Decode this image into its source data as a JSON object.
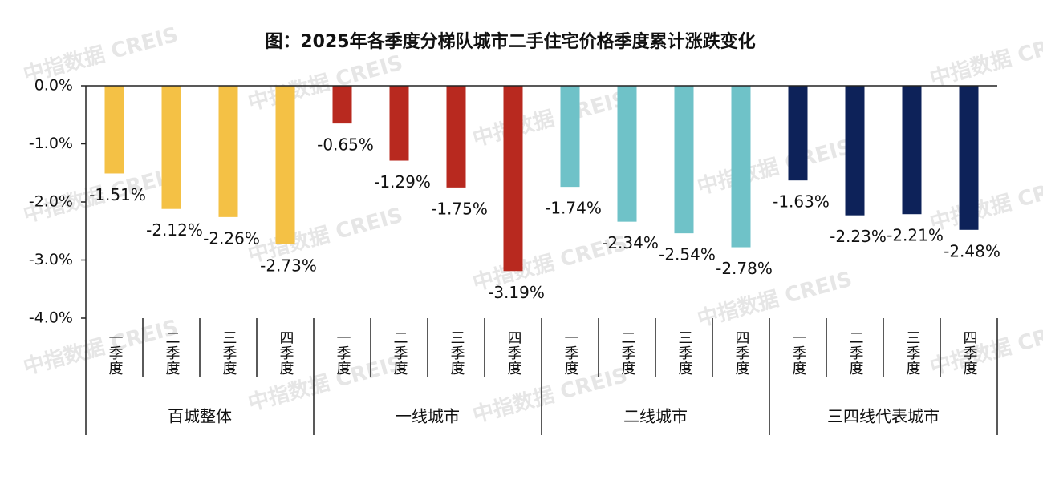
{
  "chart_data": {
    "type": "bar",
    "title": "图：2025年各季度分梯队城市二手住宅价格季度累计涨跌变化",
    "watermark": "中指数据 CREIS",
    "categories": [
      "一季度",
      "二季度",
      "三季度",
      "四季度"
    ],
    "series": [
      {
        "name": "百城整体",
        "color": "#f4c145",
        "values": [
          -1.51,
          -2.12,
          -2.26,
          -2.73
        ],
        "value_labels": [
          "-1.51%",
          "-2.12%",
          "-2.26%",
          "-2.73%"
        ]
      },
      {
        "name": "一线城市",
        "color": "#b8291f",
        "values": [
          -0.65,
          -1.29,
          -1.75,
          -3.19
        ],
        "value_labels": [
          "-0.65%",
          "-1.29%",
          "-1.75%",
          "-3.19%"
        ]
      },
      {
        "name": "二线城市",
        "color": "#6fc2c8",
        "values": [
          -1.74,
          -2.34,
          -2.54,
          -2.78
        ],
        "value_labels": [
          "-1.74%",
          "-2.34%",
          "-2.54%",
          "-2.78%"
        ]
      },
      {
        "name": "三四线代表城市",
        "color": "#0d2259",
        "values": [
          -1.63,
          -2.23,
          -2.21,
          -2.48
        ],
        "value_labels": [
          "-1.63%",
          "-2.23%",
          "-2.21%",
          "-2.48%"
        ]
      }
    ],
    "ylim": [
      -4,
      0
    ],
    "yticks": [
      {
        "value": 0,
        "label": "0.0%"
      },
      {
        "value": -1,
        "label": "-1.0%"
      },
      {
        "value": -2,
        "label": "-2.0%"
      },
      {
        "value": -3,
        "label": "-3.0%"
      },
      {
        "value": -4,
        "label": "-4.0%"
      }
    ]
  }
}
